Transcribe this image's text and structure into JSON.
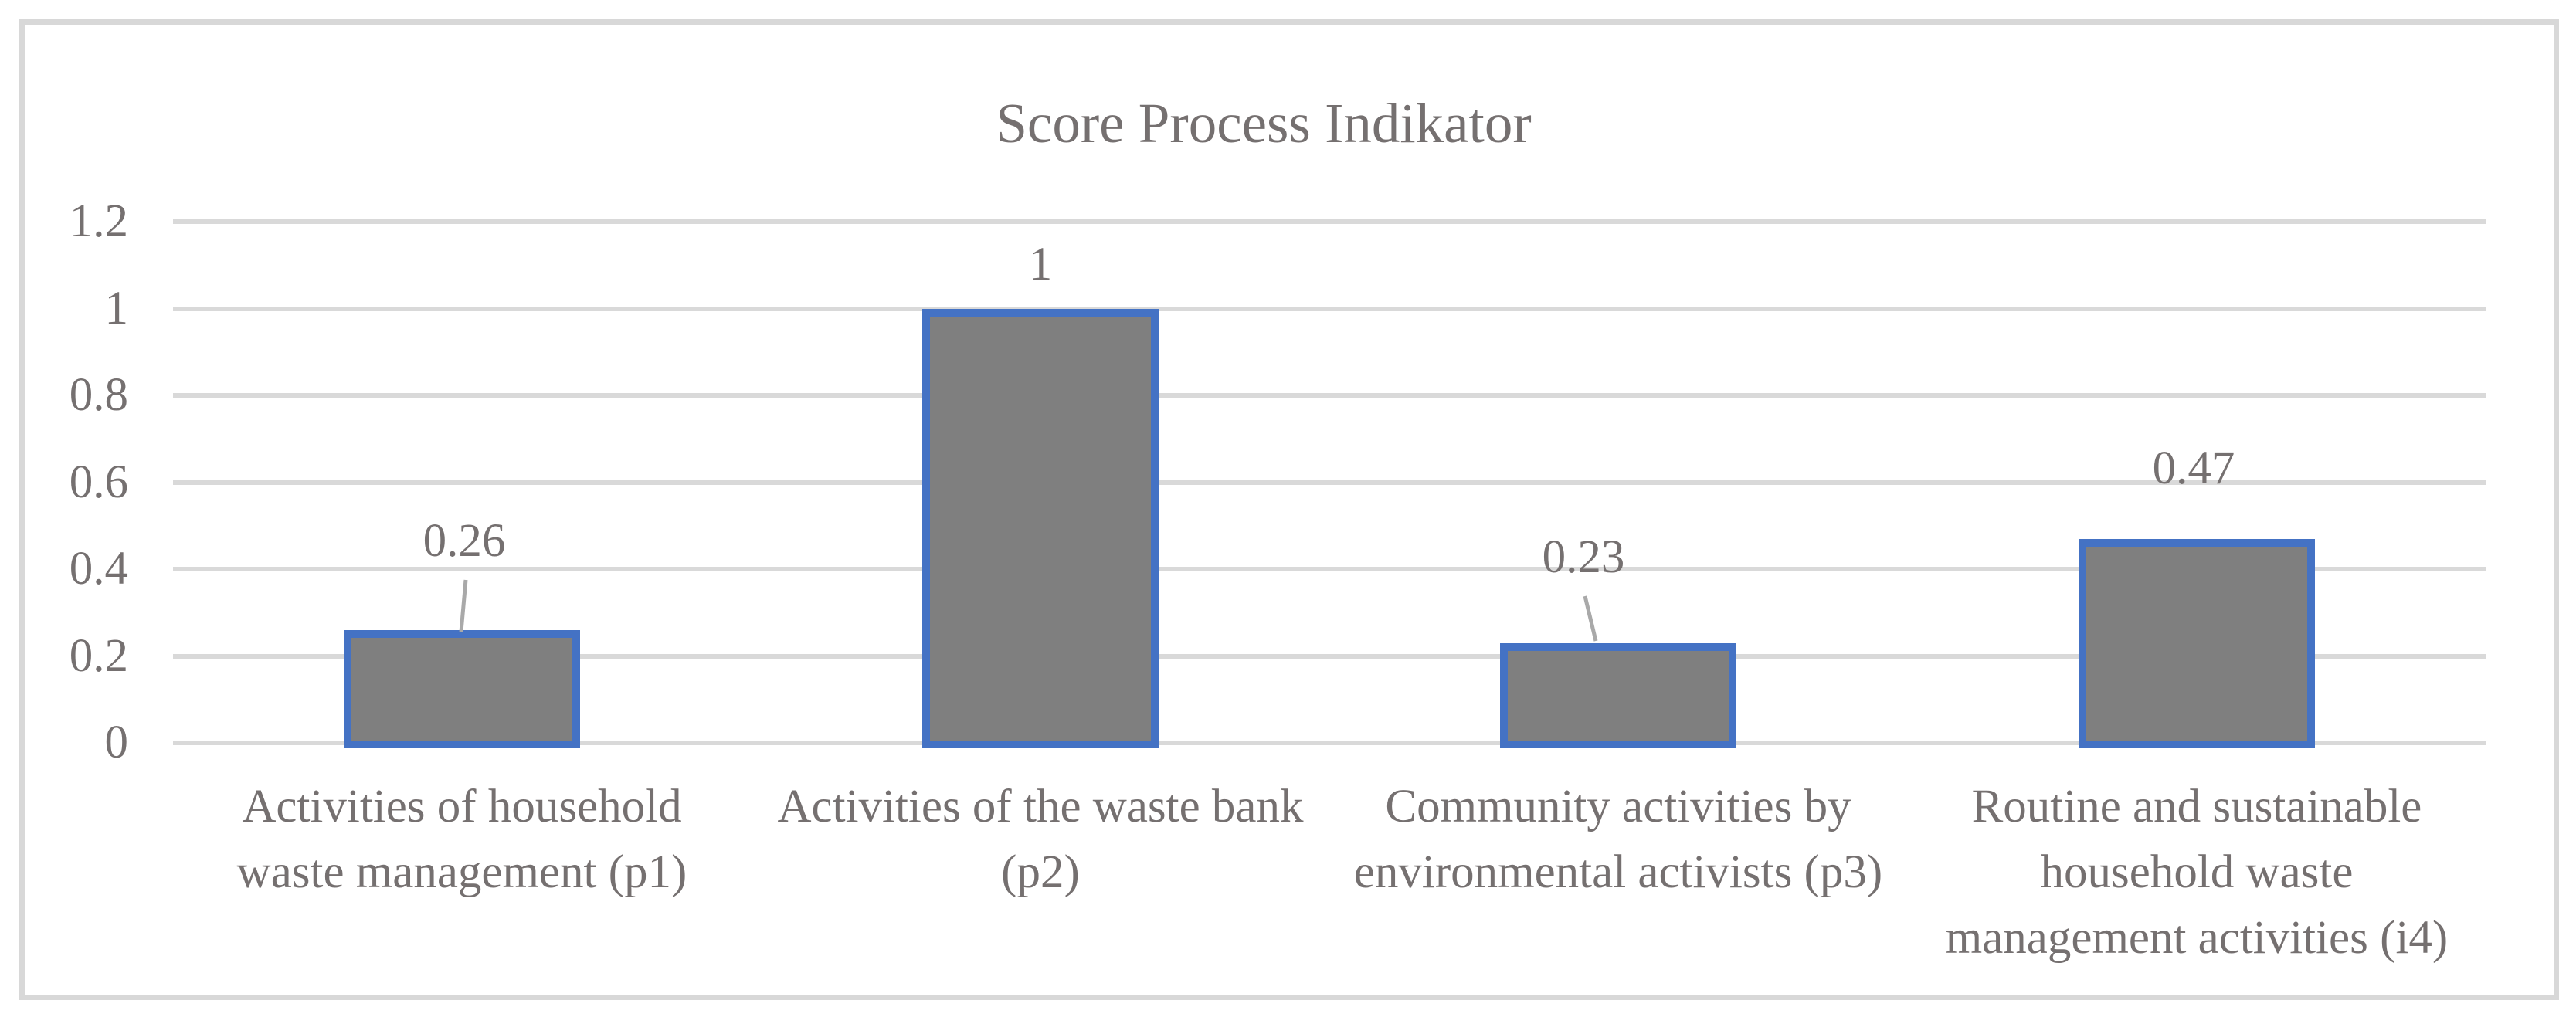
{
  "chart_data": {
    "type": "bar",
    "title": "Score Process Indikator",
    "categories": [
      [
        "Activities of household",
        "waste management (p1)"
      ],
      [
        "Activities of the waste bank",
        "(p2)"
      ],
      [
        "Community activities by",
        "environmental activists (p3)"
      ],
      [
        "Routine and sustainable",
        "household waste",
        "management activities (i4)"
      ]
    ],
    "values": [
      0.26,
      1,
      0.23,
      0.47
    ],
    "value_labels": [
      "0.26",
      "1",
      "0.23",
      "0.47"
    ],
    "xlabel": "",
    "ylabel": "",
    "ylim": [
      0,
      1.2
    ],
    "ytick_values": [
      0,
      0.2,
      0.4,
      0.6,
      0.8,
      1,
      1.2
    ],
    "ytick_labels": [
      "0",
      "0.2",
      "0.4",
      "0.6",
      "0.8",
      "1",
      "1.2"
    ],
    "grid": true,
    "legend": false,
    "colors": {
      "bar_fill": "#7F7F7F",
      "bar_border": "#4472C4",
      "gridline": "#D9D9D9",
      "frame_border": "#D8D8D8",
      "text": "#757070",
      "leader_line": "#A9A9A9",
      "background": "#FFFFFF"
    }
  }
}
